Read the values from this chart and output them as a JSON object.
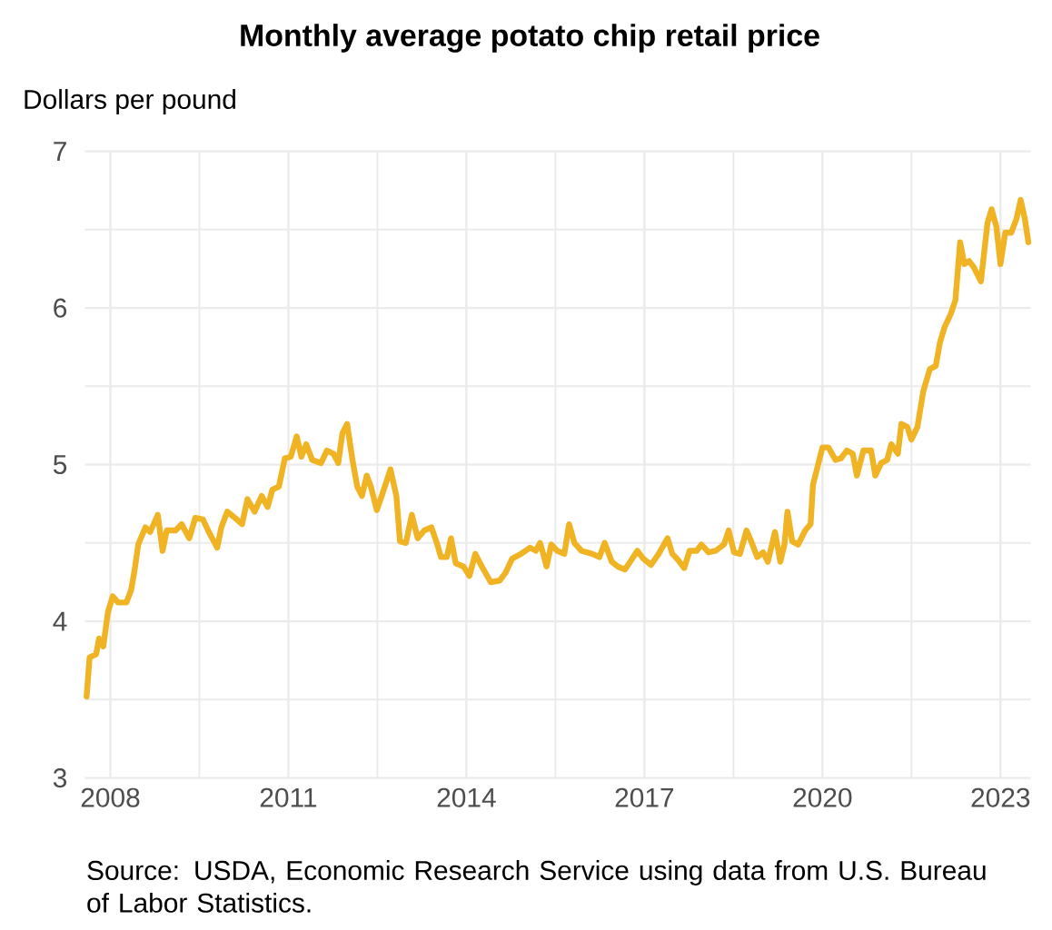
{
  "chart_data": {
    "type": "line",
    "title": "Monthly average potato chip retail price",
    "ylabel": "Dollars per pound",
    "annotations": [
      "Source: USDA, Economic Research Service using data from U.S. Bureau of Labor Statistics."
    ],
    "xlim": [
      2007.57,
      2023.51
    ],
    "ylim": [
      3,
      7
    ],
    "xticks": [
      2008,
      2011,
      2014,
      2017,
      2020,
      2023
    ],
    "yticks": [
      3,
      4,
      5,
      6,
      7
    ],
    "grid": true,
    "series": [
      {
        "color": "#f0b323",
        "x": [
          2007.6,
          2007.65,
          2007.76,
          2007.81,
          2007.88,
          2007.96,
          2008.04,
          2008.13,
          2008.27,
          2008.35,
          2008.41,
          2008.47,
          2008.59,
          2008.67,
          2008.8,
          2008.88,
          2008.95,
          2009.1,
          2009.2,
          2009.33,
          2009.43,
          2009.56,
          2009.66,
          2009.8,
          2009.87,
          2009.97,
          2010.1,
          2010.22,
          2010.31,
          2010.43,
          2010.55,
          2010.65,
          2010.73,
          2010.84,
          2010.94,
          2011.04,
          2011.14,
          2011.22,
          2011.3,
          2011.4,
          2011.55,
          2011.65,
          2011.76,
          2011.84,
          2011.91,
          2011.99,
          2012.08,
          2012.16,
          2012.24,
          2012.32,
          2012.39,
          2012.49,
          2012.59,
          2012.72,
          2012.82,
          2012.88,
          2012.98,
          2013.08,
          2013.18,
          2013.29,
          2013.41,
          2013.51,
          2013.57,
          2013.67,
          2013.74,
          2013.82,
          2013.95,
          2014.05,
          2014.15,
          2014.26,
          2014.41,
          2014.56,
          2014.66,
          2014.77,
          2014.92,
          2015.07,
          2015.17,
          2015.24,
          2015.28,
          2015.35,
          2015.43,
          2015.53,
          2015.65,
          2015.73,
          2015.82,
          2015.94,
          2016.12,
          2016.24,
          2016.33,
          2016.45,
          2016.55,
          2016.67,
          2016.76,
          2016.88,
          2016.98,
          2017.11,
          2017.24,
          2017.39,
          2017.47,
          2017.57,
          2017.67,
          2017.76,
          2017.88,
          2017.96,
          2018.08,
          2018.2,
          2018.34,
          2018.42,
          2018.51,
          2018.61,
          2018.72,
          2018.8,
          2018.9,
          2019.0,
          2019.08,
          2019.2,
          2019.29,
          2019.36,
          2019.41,
          2019.49,
          2019.59,
          2019.71,
          2019.8,
          2019.84,
          2019.92,
          2020.0,
          2020.1,
          2020.22,
          2020.31,
          2020.41,
          2020.51,
          2020.58,
          2020.69,
          2020.82,
          2020.89,
          2020.99,
          2021.09,
          2021.16,
          2021.27,
          2021.33,
          2021.43,
          2021.5,
          2021.6,
          2021.7,
          2021.81,
          2021.91,
          2021.98,
          2022.06,
          2022.16,
          2022.24,
          2022.32,
          2022.39,
          2022.47,
          2022.55,
          2022.67,
          2022.78,
          2022.85,
          2022.93,
          2023.0,
          2023.08,
          2023.18,
          2023.27,
          2023.34,
          2023.41,
          2023.47
        ],
        "values": [
          3.52,
          3.77,
          3.79,
          3.89,
          3.84,
          4.06,
          4.16,
          4.12,
          4.12,
          4.2,
          4.33,
          4.49,
          4.6,
          4.57,
          4.68,
          4.45,
          4.58,
          4.58,
          4.62,
          4.53,
          4.66,
          4.65,
          4.57,
          4.47,
          4.6,
          4.7,
          4.66,
          4.62,
          4.78,
          4.7,
          4.8,
          4.73,
          4.84,
          4.86,
          5.04,
          5.05,
          5.18,
          5.05,
          5.13,
          5.03,
          5.01,
          5.09,
          5.07,
          5.01,
          5.2,
          5.26,
          5.03,
          4.86,
          4.8,
          4.93,
          4.86,
          4.71,
          4.82,
          4.97,
          4.8,
          4.51,
          4.5,
          4.68,
          4.53,
          4.58,
          4.6,
          4.49,
          4.41,
          4.41,
          4.53,
          4.37,
          4.35,
          4.29,
          4.43,
          4.35,
          4.25,
          4.26,
          4.31,
          4.4,
          4.43,
          4.47,
          4.45,
          4.5,
          4.45,
          4.35,
          4.49,
          4.45,
          4.43,
          4.62,
          4.5,
          4.45,
          4.43,
          4.41,
          4.5,
          4.38,
          4.35,
          4.33,
          4.38,
          4.45,
          4.4,
          4.36,
          4.43,
          4.53,
          4.43,
          4.39,
          4.34,
          4.45,
          4.45,
          4.49,
          4.44,
          4.45,
          4.49,
          4.58,
          4.44,
          4.43,
          4.58,
          4.51,
          4.41,
          4.44,
          4.38,
          4.57,
          4.38,
          4.49,
          4.7,
          4.51,
          4.49,
          4.58,
          4.62,
          4.87,
          4.99,
          5.11,
          5.11,
          5.03,
          5.04,
          5.09,
          5.07,
          4.93,
          5.09,
          5.09,
          4.93,
          5.01,
          5.03,
          5.13,
          5.07,
          5.26,
          5.24,
          5.16,
          5.24,
          5.47,
          5.61,
          5.63,
          5.78,
          5.88,
          5.96,
          6.05,
          6.42,
          6.28,
          6.3,
          6.26,
          6.17,
          6.54,
          6.63,
          6.52,
          6.28,
          6.48,
          6.48,
          6.57,
          6.69,
          6.57,
          6.42
        ]
      }
    ]
  }
}
